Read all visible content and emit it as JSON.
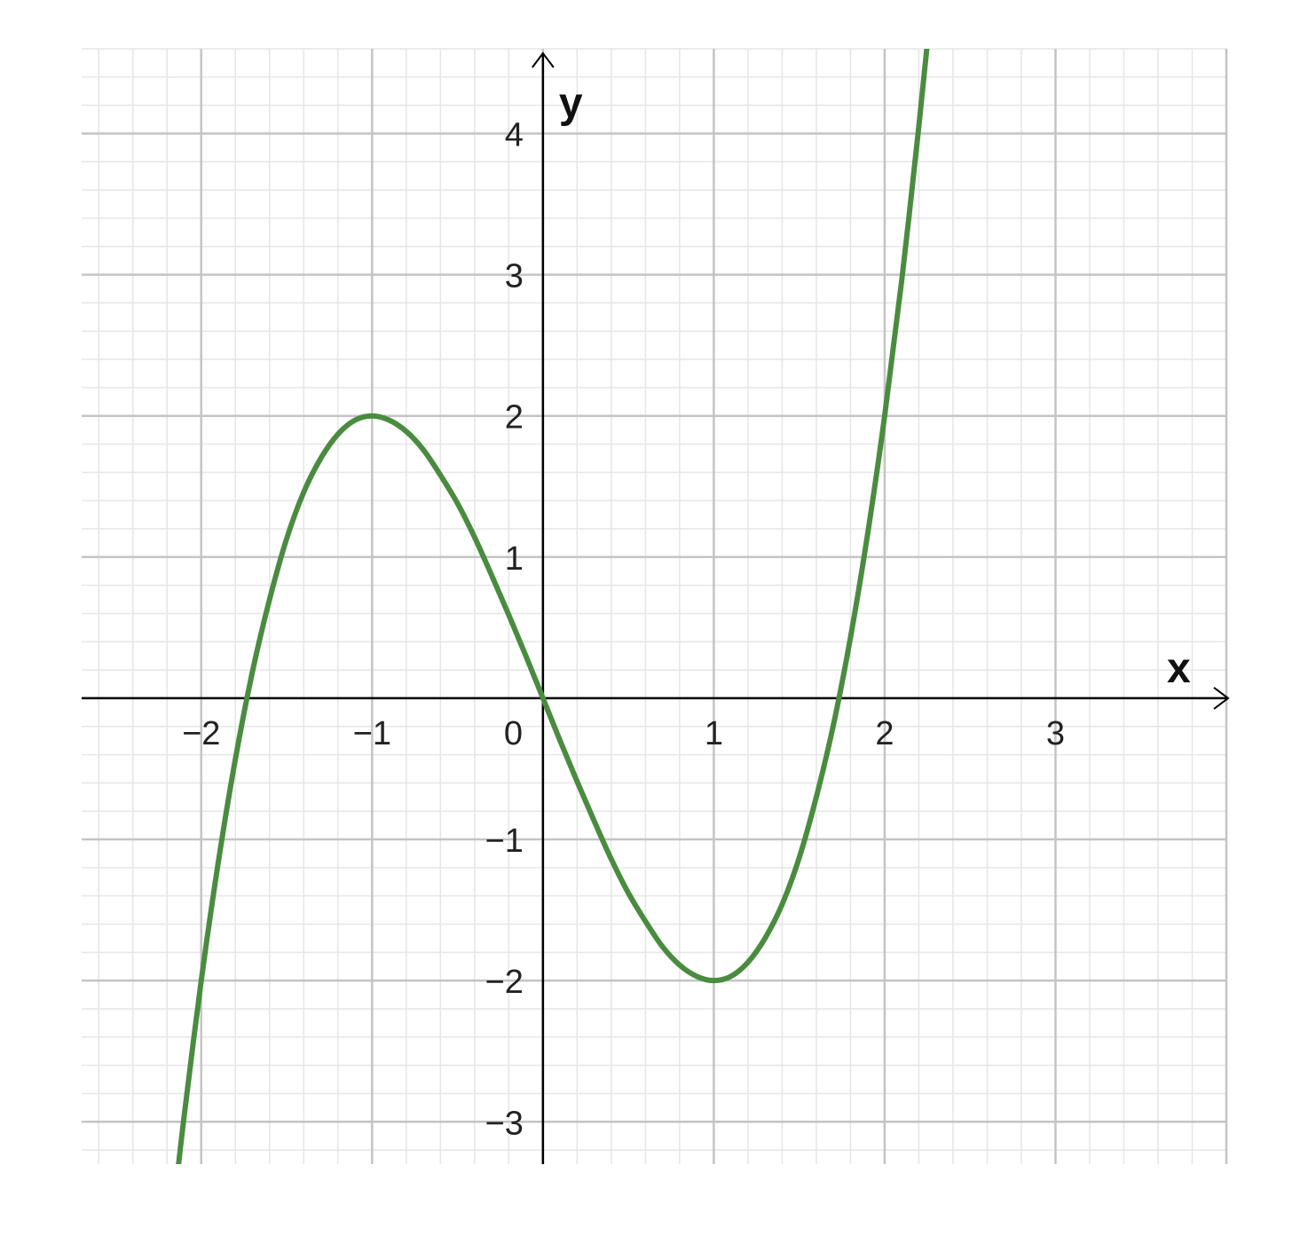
{
  "chart_data": {
    "type": "line",
    "title": "",
    "xlabel": "x",
    "ylabel": "y",
    "xlim": [
      -2.7,
      4.0
    ],
    "ylim": [
      -3.3,
      4.6
    ],
    "x_ticks": [
      -2,
      -1,
      0,
      1,
      2,
      3
    ],
    "y_ticks": [
      -3,
      -2,
      -1,
      1,
      2,
      3,
      4
    ],
    "x_tick_labels": [
      "−2",
      "−1",
      "0",
      "1",
      "2",
      "3"
    ],
    "y_tick_labels": [
      "−3",
      "−2",
      "−1",
      "1",
      "2",
      "3",
      "4"
    ],
    "grid": true,
    "minor_grid_step": 0.2,
    "series": [
      {
        "color": "#4a8c3f",
        "x": [
          -2.15,
          -2.1,
          -2.0,
          -1.9,
          -1.8,
          -1.7,
          -1.6,
          -1.5,
          -1.4,
          -1.3,
          -1.2,
          -1.1,
          -1.0,
          -0.9,
          -0.8,
          -0.7,
          -0.6,
          -0.5,
          -0.4,
          -0.3,
          -0.2,
          -0.1,
          0.0,
          0.1,
          0.2,
          0.3,
          0.4,
          0.5,
          0.6,
          0.7,
          0.8,
          0.9,
          1.0,
          1.1,
          1.2,
          1.3,
          1.4,
          1.5,
          1.6,
          1.7,
          1.8,
          1.9,
          2.0,
          2.1,
          2.2,
          2.25
        ],
        "y": [
          -3.49,
          -2.96,
          -2.0,
          -1.16,
          -0.43,
          0.19,
          0.7,
          1.13,
          1.46,
          1.7,
          1.87,
          1.97,
          2.0,
          1.97,
          1.89,
          1.76,
          1.58,
          1.38,
          1.14,
          0.87,
          0.59,
          0.3,
          0.0,
          -0.3,
          -0.59,
          -0.87,
          -1.14,
          -1.38,
          -1.58,
          -1.76,
          -1.89,
          -1.97,
          -2.0,
          -1.97,
          -1.87,
          -1.7,
          -1.46,
          -1.13,
          -0.7,
          -0.19,
          0.43,
          1.16,
          2.0,
          2.96,
          4.05,
          4.64
        ]
      }
    ]
  }
}
